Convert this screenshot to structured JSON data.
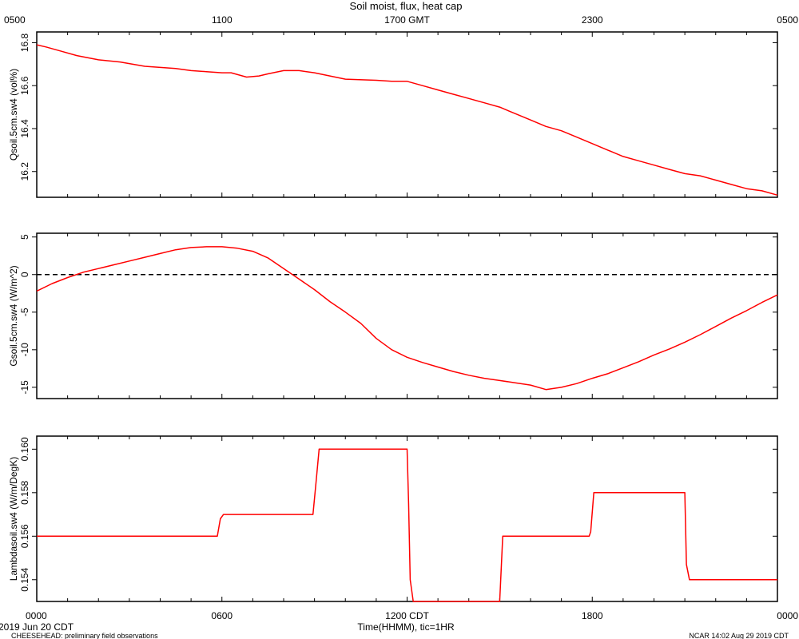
{
  "title": "Soil moist, flux, heat cap",
  "top_axis": {
    "unit_label": "GMT",
    "ticks": [
      {
        "hour": 0,
        "label": "0500"
      },
      {
        "hour": 6,
        "label": "1100"
      },
      {
        "hour": 12,
        "label": "1700 GMT"
      },
      {
        "hour": 18,
        "label": "2300"
      },
      {
        "hour": 24,
        "label": "0500"
      }
    ]
  },
  "bottom_axis": {
    "label": "Time(HHMM), tic=1HR",
    "tick_interval_hours": 1,
    "ticks": [
      {
        "hour": 0,
        "label": "0000"
      },
      {
        "hour": 6,
        "label": "0600"
      },
      {
        "hour": 12,
        "label": "1200 CDT"
      },
      {
        "hour": 18,
        "label": "1800"
      },
      {
        "hour": 24,
        "label": "0000"
      }
    ]
  },
  "footer": {
    "date": "2019 Jun 20 CDT",
    "left_note": "CHEESEHEAD: preliminary field observations",
    "right_note": "NCAR 14:02 Aug 29 2019 CDT"
  },
  "colors": {
    "series": "#ff0000",
    "axes": "#000000",
    "zero_line": "#000000"
  },
  "chart_data": [
    {
      "type": "line",
      "ylabel": "Qsoil.5cm.sw4 (vol%)",
      "ylim": [
        16.08,
        16.85
      ],
      "yticks": [
        16.2,
        16.4,
        16.6,
        16.8
      ],
      "ytick_labels": [
        "16.2",
        "16.4",
        "16.6",
        "16.8"
      ],
      "x_unit": "hours since 0000 CDT",
      "xlim": [
        0,
        24
      ],
      "series": [
        {
          "x": [
            0,
            0.3,
            0.8,
            1.3,
            2.0,
            2.7,
            3.5,
            4.5,
            5.0,
            5.5,
            6.0,
            6.3,
            6.8,
            7.2,
            7.5,
            8.0,
            8.5,
            9.0,
            9.5,
            10.0,
            11.0,
            11.5,
            12.0,
            12.5,
            13.0,
            13.5,
            14.0,
            14.5,
            15.0,
            15.5,
            16.0,
            16.5,
            17.0,
            17.5,
            18.0,
            18.5,
            19.0,
            19.5,
            20.0,
            20.5,
            21.0,
            21.5,
            22.0,
            22.5,
            23.0,
            23.5,
            24.0
          ],
          "y": [
            16.79,
            16.78,
            16.76,
            16.74,
            16.72,
            16.71,
            16.69,
            16.68,
            16.67,
            16.665,
            16.66,
            16.66,
            16.64,
            16.645,
            16.655,
            16.67,
            16.67,
            16.66,
            16.645,
            16.63,
            16.625,
            16.62,
            16.62,
            16.6,
            16.58,
            16.56,
            16.54,
            16.52,
            16.5,
            16.47,
            16.44,
            16.41,
            16.39,
            16.36,
            16.33,
            16.3,
            16.27,
            16.25,
            16.23,
            16.21,
            16.19,
            16.18,
            16.16,
            16.14,
            16.12,
            16.11,
            16.09
          ]
        }
      ]
    },
    {
      "type": "line",
      "ylabel": "Gsoil.5cm.sw4 (W/m^2)",
      "ylim": [
        -16.5,
        5.5
      ],
      "yticks": [
        -15,
        -10,
        -5,
        0,
        5
      ],
      "ytick_labels": [
        "-15",
        "-10",
        "-5",
        "0",
        "5"
      ],
      "reference_line": {
        "y": 0,
        "style": "dashed"
      },
      "x_unit": "hours since 0000 CDT",
      "xlim": [
        0,
        24
      ],
      "series": [
        {
          "x": [
            0,
            0.5,
            1.0,
            1.5,
            2.0,
            2.5,
            3.0,
            3.5,
            4.0,
            4.5,
            5.0,
            5.5,
            6.0,
            6.5,
            7.0,
            7.5,
            8.0,
            8.5,
            9.0,
            9.5,
            10.0,
            10.5,
            11.0,
            11.5,
            12.0,
            12.5,
            13.0,
            13.5,
            14.0,
            14.5,
            15.0,
            15.5,
            16.0,
            16.5,
            17.0,
            17.5,
            18.0,
            18.5,
            19.0,
            19.5,
            20.0,
            20.5,
            21.0,
            21.5,
            22.0,
            22.5,
            23.0,
            23.5,
            24.0
          ],
          "y": [
            -2.2,
            -1.2,
            -0.4,
            0.3,
            0.8,
            1.3,
            1.8,
            2.3,
            2.8,
            3.3,
            3.6,
            3.7,
            3.7,
            3.5,
            3.1,
            2.2,
            0.8,
            -0.6,
            -2.0,
            -3.6,
            -5.0,
            -6.5,
            -8.5,
            -10.0,
            -11.0,
            -11.7,
            -12.3,
            -12.9,
            -13.4,
            -13.8,
            -14.1,
            -14.4,
            -14.7,
            -15.3,
            -15.0,
            -14.5,
            -13.8,
            -13.2,
            -12.4,
            -11.6,
            -10.7,
            -9.9,
            -9.0,
            -8.0,
            -6.9,
            -5.8,
            -4.8,
            -3.7,
            -2.7
          ]
        }
      ]
    },
    {
      "type": "line",
      "ylabel": "Lambdasoil.sw4 (W/m/DegK)",
      "ylim": [
        0.153,
        0.1606
      ],
      "yticks": [
        0.154,
        0.156,
        0.158,
        0.16
      ],
      "ytick_labels": [
        "0.154",
        "0.156",
        "0.158",
        "0.160"
      ],
      "x_unit": "hours since 0000 CDT",
      "xlim": [
        0,
        24
      ],
      "series": [
        {
          "x": [
            0,
            5.85,
            5.95,
            6.05,
            8.95,
            9.05,
            9.15,
            12.0,
            12.05,
            12.1,
            12.2,
            15.0,
            15.05,
            15.1,
            17.9,
            17.95,
            18.05,
            21.0,
            21.05,
            21.15,
            24.0
          ],
          "y": [
            0.156,
            0.156,
            0.1568,
            0.157,
            0.157,
            0.1585,
            0.16,
            0.16,
            0.1575,
            0.154,
            0.153,
            0.153,
            0.1545,
            0.156,
            0.156,
            0.1562,
            0.158,
            0.158,
            0.1547,
            0.154,
            0.154
          ]
        }
      ]
    }
  ]
}
